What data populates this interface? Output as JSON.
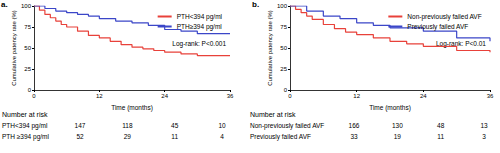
{
  "chart_data": [
    {
      "type": "step",
      "title": "a.",
      "x_label": "Time (months)",
      "y_label": "Cumulative patency rate (%)",
      "xlim": [
        0,
        36
      ],
      "xticks": [
        0,
        12,
        24,
        36
      ],
      "ylim": [
        0,
        100
      ],
      "yticks": [
        0,
        25,
        50,
        75,
        100
      ],
      "grid": false,
      "legend": "upper right",
      "annotation": "Log-rank: P<0.001",
      "series": [
        {
          "name": "PTH<394 pg/ml",
          "color": "#e8413a",
          "x": [
            0,
            1,
            2,
            3,
            4,
            5,
            6,
            8,
            10,
            12,
            14,
            16,
            18,
            20,
            22,
            24,
            27,
            30,
            36
          ],
          "values": [
            100,
            95,
            90,
            86,
            82,
            78,
            75,
            70,
            65,
            62,
            58,
            54,
            51,
            49,
            47,
            45,
            43,
            41,
            41
          ]
        },
        {
          "name": "PTH≥394 pg/ml",
          "color": "#3b46c8",
          "x": [
            0,
            2,
            4,
            6,
            8,
            10,
            12,
            15,
            18,
            21,
            24,
            27,
            30,
            36
          ],
          "values": [
            100,
            97,
            94,
            92,
            90,
            88,
            85,
            82,
            80,
            77,
            72,
            70,
            67,
            67
          ]
        }
      ],
      "risk_table": {
        "title": "Number at risk",
        "rows": [
          {
            "label": "PTH<394 pg/ml",
            "values": [
              147,
              118,
              45,
              10
            ]
          },
          {
            "label": "PTH ≥394 pg/ml",
            "values": [
              52,
              29,
              11,
              4
            ]
          }
        ]
      }
    },
    {
      "type": "step",
      "title": "b.",
      "x_label": "Time (months)",
      "y_label": "Cumulative patency rate (%)",
      "xlim": [
        0,
        36
      ],
      "xticks": [
        0,
        12,
        24,
        36
      ],
      "ylim": [
        0,
        100
      ],
      "yticks": [
        0,
        25,
        50,
        75,
        100
      ],
      "grid": false,
      "legend": "upper right",
      "annotation": "Log-rank: P<0.01",
      "series": [
        {
          "name": "Non-previously failed AVF",
          "color": "#e8413a",
          "x": [
            0,
            1,
            2,
            3,
            4,
            6,
            8,
            10,
            12,
            15,
            18,
            21,
            24,
            30,
            36
          ],
          "values": [
            100,
            96,
            92,
            88,
            84,
            78,
            73,
            69,
            66,
            62,
            58,
            55,
            52,
            47,
            45
          ]
        },
        {
          "name": "Previously failed AVF",
          "color": "#3b46c8",
          "x": [
            0,
            3,
            6,
            9,
            12,
            15,
            18,
            24,
            30,
            36
          ],
          "values": [
            100,
            94,
            88,
            85,
            80,
            77,
            74,
            70,
            62,
            58
          ]
        }
      ],
      "risk_table": {
        "title": "Number at risk",
        "rows": [
          {
            "label": "Non-previously failed AVF",
            "values": [
              166,
              130,
              48,
              13
            ]
          },
          {
            "label": "Previously failed AVF",
            "values": [
              33,
              19,
              11,
              3
            ]
          }
        ]
      }
    }
  ]
}
